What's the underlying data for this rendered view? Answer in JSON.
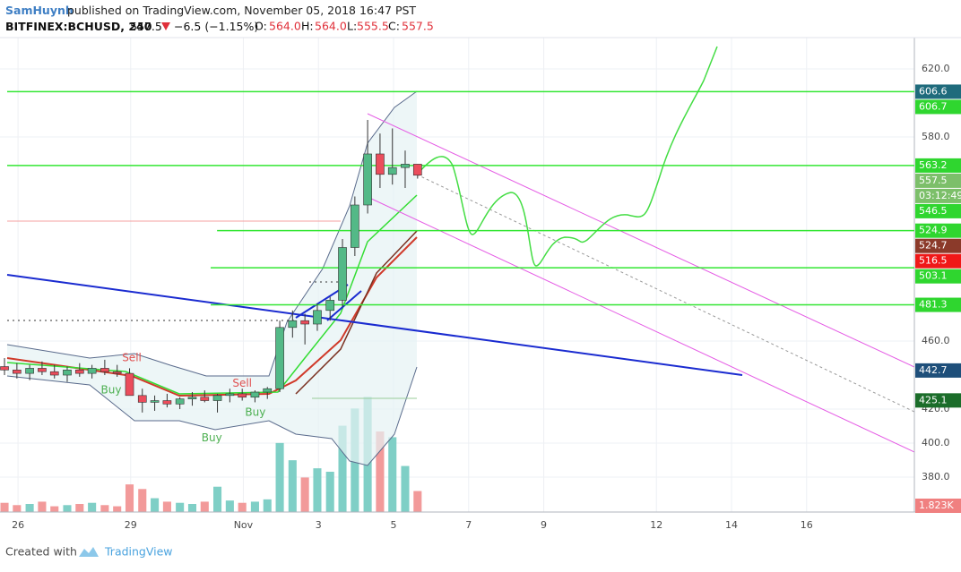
{
  "header": {
    "author": "SamHuynh",
    "published": "published on TradingView.com, November 05, 2018 16:47 PST",
    "symbol": "BITFINEX:BCHUSD, 240",
    "last": "557.5",
    "change": "−6.5 (−1.15%)",
    "ohlc": [
      {
        "label": "O:",
        "value": "564.0"
      },
      {
        "label": "H:",
        "value": "564.0"
      },
      {
        "label": "L:",
        "value": "555.5"
      },
      {
        "label": "C:",
        "value": "557.5"
      }
    ]
  },
  "footer": {
    "created": "Created with",
    "brand": "TradingView"
  },
  "chart_data": {
    "type": "candlestick",
    "x": [
      -0.36,
      -0.03,
      0.31,
      0.64,
      0.97,
      1.31,
      1.64,
      1.97,
      2.31,
      2.64,
      2.97,
      3.31,
      3.64,
      3.97,
      4.31,
      4.64,
      4.97,
      5.31,
      5.64,
      5.97,
      6.31,
      6.64,
      6.97,
      7.31,
      7.64,
      7.97,
      8.31,
      8.64,
      8.97,
      9.31,
      9.64,
      9.97,
      10.31,
      10.64
    ],
    "open": [
      445,
      443,
      441,
      444,
      442,
      440,
      443,
      441,
      444,
      442,
      441,
      428,
      424,
      425,
      423,
      426,
      427,
      425,
      428,
      429,
      427,
      430,
      432,
      468,
      472,
      470,
      478,
      484,
      515,
      540,
      570,
      558,
      562,
      564
    ],
    "high": [
      450,
      447,
      446,
      448,
      446,
      445,
      447,
      446,
      449,
      446,
      444,
      432,
      428,
      429,
      427,
      430,
      431,
      429,
      432,
      432,
      431,
      433,
      472,
      478,
      476,
      482,
      486,
      520,
      545,
      590,
      582,
      585,
      572,
      564
    ],
    "low": [
      440,
      438,
      437,
      440,
      438,
      436,
      439,
      438,
      440,
      439,
      430,
      418,
      419,
      421,
      420,
      422,
      424,
      418,
      424,
      425,
      424,
      426,
      430,
      462,
      458,
      466,
      472,
      480,
      510,
      535,
      550,
      552,
      550,
      555.5
    ],
    "close": [
      443,
      441,
      444,
      442,
      440,
      443,
      441,
      444,
      442,
      441,
      428,
      424,
      425,
      423,
      426,
      427,
      425,
      428,
      429,
      427,
      430,
      432,
      468,
      472,
      470,
      478,
      484,
      515,
      540,
      570,
      558,
      562,
      564,
      557.5
    ],
    "volume": [
      800,
      600,
      700,
      900,
      500,
      600,
      700,
      800,
      600,
      500,
      2400,
      2000,
      1200,
      900,
      800,
      700,
      900,
      2200,
      1000,
      800,
      900,
      1100,
      6000,
      4500,
      3000,
      3800,
      3500,
      7500,
      9000,
      10000,
      7000,
      6500,
      4000,
      1823
    ],
    "up_color": "#53b987",
    "down_color": "#eb4d5c",
    "volume_up_color": "#7fcfc6",
    "volume_down_color": "#f29a9a",
    "xlim": [
      -0.48,
      23.87
    ],
    "ylim": [
      359.5,
      638.4
    ],
    "vlim": [
      0,
      14000
    ],
    "xticks": [
      {
        "value": 0,
        "label": "26"
      },
      {
        "value": 3,
        "label": "29"
      },
      {
        "value": 6,
        "label": "Nov"
      },
      {
        "value": 8,
        "label": "3"
      },
      {
        "value": 10,
        "label": "5"
      },
      {
        "value": 12,
        "label": "7"
      },
      {
        "value": 14,
        "label": "9"
      },
      {
        "value": 17,
        "label": "12"
      },
      {
        "value": 19,
        "label": "14"
      },
      {
        "value": 21,
        "label": "16"
      }
    ],
    "yticks": [
      {
        "value": 380,
        "label": "380.0"
      },
      {
        "value": 400,
        "label": "400.0"
      },
      {
        "value": 420,
        "label": "420.0"
      },
      {
        "value": 460,
        "label": "460.0"
      },
      {
        "value": 580,
        "label": "580.0"
      },
      {
        "value": 620,
        "label": "620.0"
      }
    ],
    "grid": true,
    "levels": [
      {
        "value": 606.6,
        "from": -0.48
      },
      {
        "value": 563.2,
        "from": -0.48
      },
      {
        "value": 524.9,
        "from": 5.3
      },
      {
        "value": 503.1,
        "from": 5.13
      },
      {
        "value": 481.3,
        "from": 5.13
      }
    ],
    "level_color": "#33e633",
    "price_labels": [
      {
        "value": 606.6,
        "label": "606.6",
        "color": "#1f6b7c"
      },
      {
        "value": 606.7,
        "label": "606.7",
        "color": "#2fd62f"
      },
      {
        "value": 563.2,
        "label": "563.2",
        "color": "#2fd62f"
      },
      {
        "value": 557.5,
        "label": "557.5",
        "color": "#7cbf6a"
      },
      {
        "label": "03:12:49",
        "color": "#7cbf6a"
      },
      {
        "value": 546.5,
        "label": "546.5",
        "color": "#2fd62f"
      },
      {
        "value": 524.9,
        "label": "524.9",
        "color": "#2fd62f"
      },
      {
        "value": 524.7,
        "label": "524.7",
        "color": "#8b3a2a"
      },
      {
        "value": 516.5,
        "label": "516.5",
        "color": "#f01818"
      },
      {
        "value": 503.1,
        "label": "503.1",
        "color": "#2fd62f"
      },
      {
        "value": 481.3,
        "label": "481.3",
        "color": "#2fd62f"
      },
      {
        "value": 442.7,
        "label": "442.7",
        "color": "#1e4f7a"
      },
      {
        "value": 425.1,
        "label": "425.1",
        "color": "#1b6d2a"
      }
    ],
    "volume_label": {
      "value": 1823,
      "label": "1.823K",
      "color": "#f08080"
    },
    "annotations": [
      {
        "text": "Sell",
        "x": 3.03,
        "y": 450,
        "color": "#e05050"
      },
      {
        "text": "Buy",
        "x": 2.48,
        "y": 431,
        "color": "#4caf50"
      },
      {
        "text": "Sell",
        "x": 5.97,
        "y": 435,
        "color": "#e05050"
      },
      {
        "text": "Buy",
        "x": 6.32,
        "y": 418,
        "color": "#4caf50"
      },
      {
        "text": "Buy",
        "x": 5.16,
        "y": 403,
        "color": "#4caf50"
      }
    ]
  }
}
